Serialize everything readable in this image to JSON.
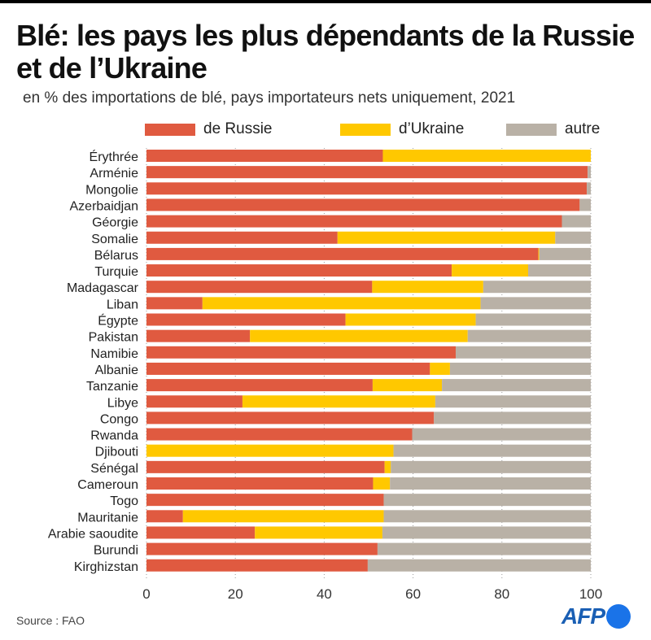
{
  "title": "Blé: les pays les plus dépendants de la Russie et de l’Ukraine",
  "subtitle": "en % des importations de blé, pays importateurs nets uniquement, 2021",
  "source": "Source : FAO",
  "logo": "AFP",
  "chart_data": {
    "type": "bar",
    "orientation": "horizontal",
    "stacked": true,
    "xlim": [
      0,
      100
    ],
    "xticks": [
      "0",
      "20",
      "40",
      "60",
      "80",
      "100"
    ],
    "grid": true,
    "legend_position": "top",
    "categories": [
      "Érythrée",
      "Arménie",
      "Mongolie",
      "Azerbaidjan",
      "Géorgie",
      "Somalie",
      "Bélarus",
      "Turquie",
      "Madagascar",
      "Liban",
      "Égypte",
      "Pakistan",
      "Namibie",
      "Albanie",
      "Tanzanie",
      "Libye",
      "Congo",
      "Rwanda",
      "Djibouti",
      "Sénégal",
      "Cameroun",
      "Togo",
      "Mauritanie",
      "Arabie saoudite",
      "Burundi",
      "Kirghizstan"
    ],
    "series": [
      {
        "name": "de Russie",
        "color": "#e05a40",
        "values": [
          53.2,
          99.3,
          99.1,
          97.5,
          93.5,
          43.0,
          88.2,
          68.7,
          50.8,
          12.6,
          44.8,
          23.3,
          69.6,
          63.8,
          50.9,
          21.6,
          64.7,
          59.8,
          0,
          53.6,
          51.0,
          53.4,
          8.2,
          24.4,
          52.0,
          49.8
        ]
      },
      {
        "name": "d’Ukraine",
        "color": "#ffc800",
        "values": [
          46.8,
          0,
          0,
          0,
          0,
          49.0,
          0.2,
          17.2,
          25.0,
          62.6,
          29.3,
          49.0,
          0,
          4.5,
          15.6,
          43.4,
          0,
          0,
          55.6,
          1.4,
          3.8,
          0,
          45.2,
          28.7,
          0,
          0
        ]
      },
      {
        "name": "autre",
        "color": "#b9b1a6",
        "values": [
          0,
          0.7,
          0.9,
          2.5,
          6.5,
          8.0,
          11.6,
          14.1,
          24.2,
          24.8,
          25.9,
          27.7,
          30.4,
          31.7,
          33.5,
          35.0,
          35.3,
          40.2,
          44.4,
          45.0,
          45.2,
          46.6,
          46.6,
          46.9,
          48.0,
          50.2
        ]
      }
    ]
  }
}
